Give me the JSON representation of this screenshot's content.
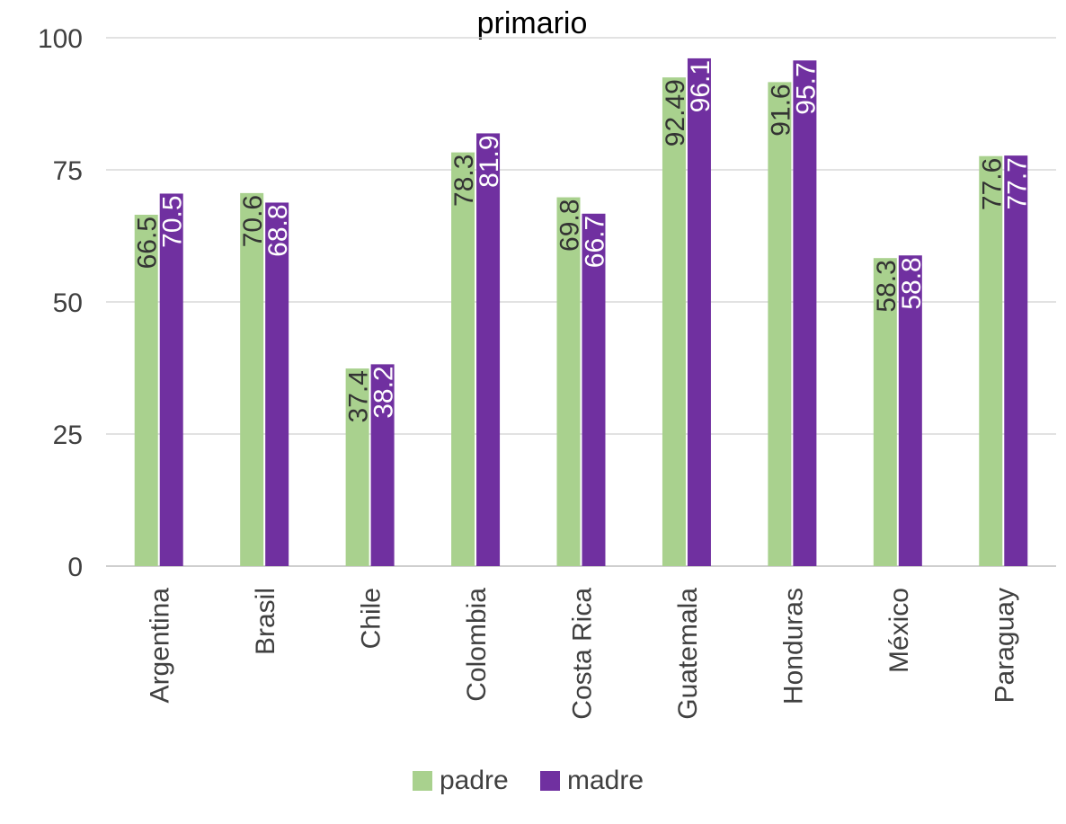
{
  "chart_data": {
    "type": "bar",
    "title": "primario",
    "xlabel": "",
    "ylabel": "",
    "ylim": [
      0,
      100
    ],
    "yticks": [
      0,
      25,
      50,
      75,
      100
    ],
    "grid": true,
    "legend_position": "bottom",
    "categories": [
      "Argentina",
      "Brasil",
      "Chile",
      "Colombia",
      "Costa Rica",
      "Guatemala",
      "Honduras",
      "México",
      "Paraguay"
    ],
    "series": [
      {
        "name": "padre",
        "color": "#A9D18E",
        "label_color": "#333333",
        "values": [
          66.5,
          70.6,
          37.4,
          78.3,
          69.8,
          92.49,
          91.6,
          58.3,
          77.6
        ],
        "labels": [
          "66.5",
          "70.6",
          "37.4",
          "78.3",
          "69.8",
          "92.49",
          "91.6",
          "58.3",
          "77.6"
        ]
      },
      {
        "name": "madre",
        "color": "#7030A0",
        "label_color": "#ffffff",
        "values": [
          70.5,
          68.8,
          38.2,
          81.9,
          66.7,
          96.1,
          95.7,
          58.8,
          77.7
        ],
        "labels": [
          "70.5",
          "68.8",
          "38.2",
          "81.9",
          "66.7",
          "96.1",
          "95.7",
          "58.8",
          "77.7"
        ]
      }
    ]
  }
}
